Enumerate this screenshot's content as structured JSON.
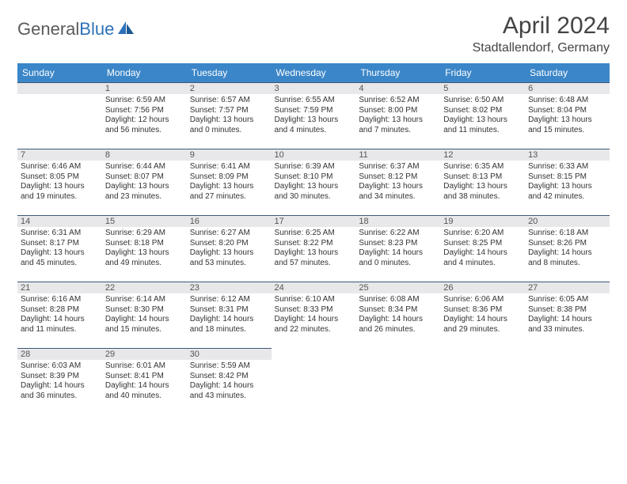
{
  "logo": {
    "general": "General",
    "blue": "Blue"
  },
  "title": "April 2024",
  "location": "Stadtallendorf, Germany",
  "columns": [
    "Sunday",
    "Monday",
    "Tuesday",
    "Wednesday",
    "Thursday",
    "Friday",
    "Saturday"
  ],
  "colors": {
    "header_bg": "#3b86c8",
    "header_fg": "#ffffff",
    "daynum_bg": "#e8e8ea",
    "daynum_border": "#3b5875",
    "text": "#333333",
    "logo_gray": "#5a5a5a",
    "logo_blue": "#2d72b8"
  },
  "weeks": [
    [
      {
        "n": "",
        "sr": "",
        "ss": "",
        "dl": ""
      },
      {
        "n": "1",
        "sr": "Sunrise: 6:59 AM",
        "ss": "Sunset: 7:56 PM",
        "dl": "Daylight: 12 hours and 56 minutes."
      },
      {
        "n": "2",
        "sr": "Sunrise: 6:57 AM",
        "ss": "Sunset: 7:57 PM",
        "dl": "Daylight: 13 hours and 0 minutes."
      },
      {
        "n": "3",
        "sr": "Sunrise: 6:55 AM",
        "ss": "Sunset: 7:59 PM",
        "dl": "Daylight: 13 hours and 4 minutes."
      },
      {
        "n": "4",
        "sr": "Sunrise: 6:52 AM",
        "ss": "Sunset: 8:00 PM",
        "dl": "Daylight: 13 hours and 7 minutes."
      },
      {
        "n": "5",
        "sr": "Sunrise: 6:50 AM",
        "ss": "Sunset: 8:02 PM",
        "dl": "Daylight: 13 hours and 11 minutes."
      },
      {
        "n": "6",
        "sr": "Sunrise: 6:48 AM",
        "ss": "Sunset: 8:04 PM",
        "dl": "Daylight: 13 hours and 15 minutes."
      }
    ],
    [
      {
        "n": "7",
        "sr": "Sunrise: 6:46 AM",
        "ss": "Sunset: 8:05 PM",
        "dl": "Daylight: 13 hours and 19 minutes."
      },
      {
        "n": "8",
        "sr": "Sunrise: 6:44 AM",
        "ss": "Sunset: 8:07 PM",
        "dl": "Daylight: 13 hours and 23 minutes."
      },
      {
        "n": "9",
        "sr": "Sunrise: 6:41 AM",
        "ss": "Sunset: 8:09 PM",
        "dl": "Daylight: 13 hours and 27 minutes."
      },
      {
        "n": "10",
        "sr": "Sunrise: 6:39 AM",
        "ss": "Sunset: 8:10 PM",
        "dl": "Daylight: 13 hours and 30 minutes."
      },
      {
        "n": "11",
        "sr": "Sunrise: 6:37 AM",
        "ss": "Sunset: 8:12 PM",
        "dl": "Daylight: 13 hours and 34 minutes."
      },
      {
        "n": "12",
        "sr": "Sunrise: 6:35 AM",
        "ss": "Sunset: 8:13 PM",
        "dl": "Daylight: 13 hours and 38 minutes."
      },
      {
        "n": "13",
        "sr": "Sunrise: 6:33 AM",
        "ss": "Sunset: 8:15 PM",
        "dl": "Daylight: 13 hours and 42 minutes."
      }
    ],
    [
      {
        "n": "14",
        "sr": "Sunrise: 6:31 AM",
        "ss": "Sunset: 8:17 PM",
        "dl": "Daylight: 13 hours and 45 minutes."
      },
      {
        "n": "15",
        "sr": "Sunrise: 6:29 AM",
        "ss": "Sunset: 8:18 PM",
        "dl": "Daylight: 13 hours and 49 minutes."
      },
      {
        "n": "16",
        "sr": "Sunrise: 6:27 AM",
        "ss": "Sunset: 8:20 PM",
        "dl": "Daylight: 13 hours and 53 minutes."
      },
      {
        "n": "17",
        "sr": "Sunrise: 6:25 AM",
        "ss": "Sunset: 8:22 PM",
        "dl": "Daylight: 13 hours and 57 minutes."
      },
      {
        "n": "18",
        "sr": "Sunrise: 6:22 AM",
        "ss": "Sunset: 8:23 PM",
        "dl": "Daylight: 14 hours and 0 minutes."
      },
      {
        "n": "19",
        "sr": "Sunrise: 6:20 AM",
        "ss": "Sunset: 8:25 PM",
        "dl": "Daylight: 14 hours and 4 minutes."
      },
      {
        "n": "20",
        "sr": "Sunrise: 6:18 AM",
        "ss": "Sunset: 8:26 PM",
        "dl": "Daylight: 14 hours and 8 minutes."
      }
    ],
    [
      {
        "n": "21",
        "sr": "Sunrise: 6:16 AM",
        "ss": "Sunset: 8:28 PM",
        "dl": "Daylight: 14 hours and 11 minutes."
      },
      {
        "n": "22",
        "sr": "Sunrise: 6:14 AM",
        "ss": "Sunset: 8:30 PM",
        "dl": "Daylight: 14 hours and 15 minutes."
      },
      {
        "n": "23",
        "sr": "Sunrise: 6:12 AM",
        "ss": "Sunset: 8:31 PM",
        "dl": "Daylight: 14 hours and 18 minutes."
      },
      {
        "n": "24",
        "sr": "Sunrise: 6:10 AM",
        "ss": "Sunset: 8:33 PM",
        "dl": "Daylight: 14 hours and 22 minutes."
      },
      {
        "n": "25",
        "sr": "Sunrise: 6:08 AM",
        "ss": "Sunset: 8:34 PM",
        "dl": "Daylight: 14 hours and 26 minutes."
      },
      {
        "n": "26",
        "sr": "Sunrise: 6:06 AM",
        "ss": "Sunset: 8:36 PM",
        "dl": "Daylight: 14 hours and 29 minutes."
      },
      {
        "n": "27",
        "sr": "Sunrise: 6:05 AM",
        "ss": "Sunset: 8:38 PM",
        "dl": "Daylight: 14 hours and 33 minutes."
      }
    ],
    [
      {
        "n": "28",
        "sr": "Sunrise: 6:03 AM",
        "ss": "Sunset: 8:39 PM",
        "dl": "Daylight: 14 hours and 36 minutes."
      },
      {
        "n": "29",
        "sr": "Sunrise: 6:01 AM",
        "ss": "Sunset: 8:41 PM",
        "dl": "Daylight: 14 hours and 40 minutes."
      },
      {
        "n": "30",
        "sr": "Sunrise: 5:59 AM",
        "ss": "Sunset: 8:42 PM",
        "dl": "Daylight: 14 hours and 43 minutes."
      },
      {
        "n": "",
        "sr": "",
        "ss": "",
        "dl": ""
      },
      {
        "n": "",
        "sr": "",
        "ss": "",
        "dl": ""
      },
      {
        "n": "",
        "sr": "",
        "ss": "",
        "dl": ""
      },
      {
        "n": "",
        "sr": "",
        "ss": "",
        "dl": ""
      }
    ]
  ]
}
